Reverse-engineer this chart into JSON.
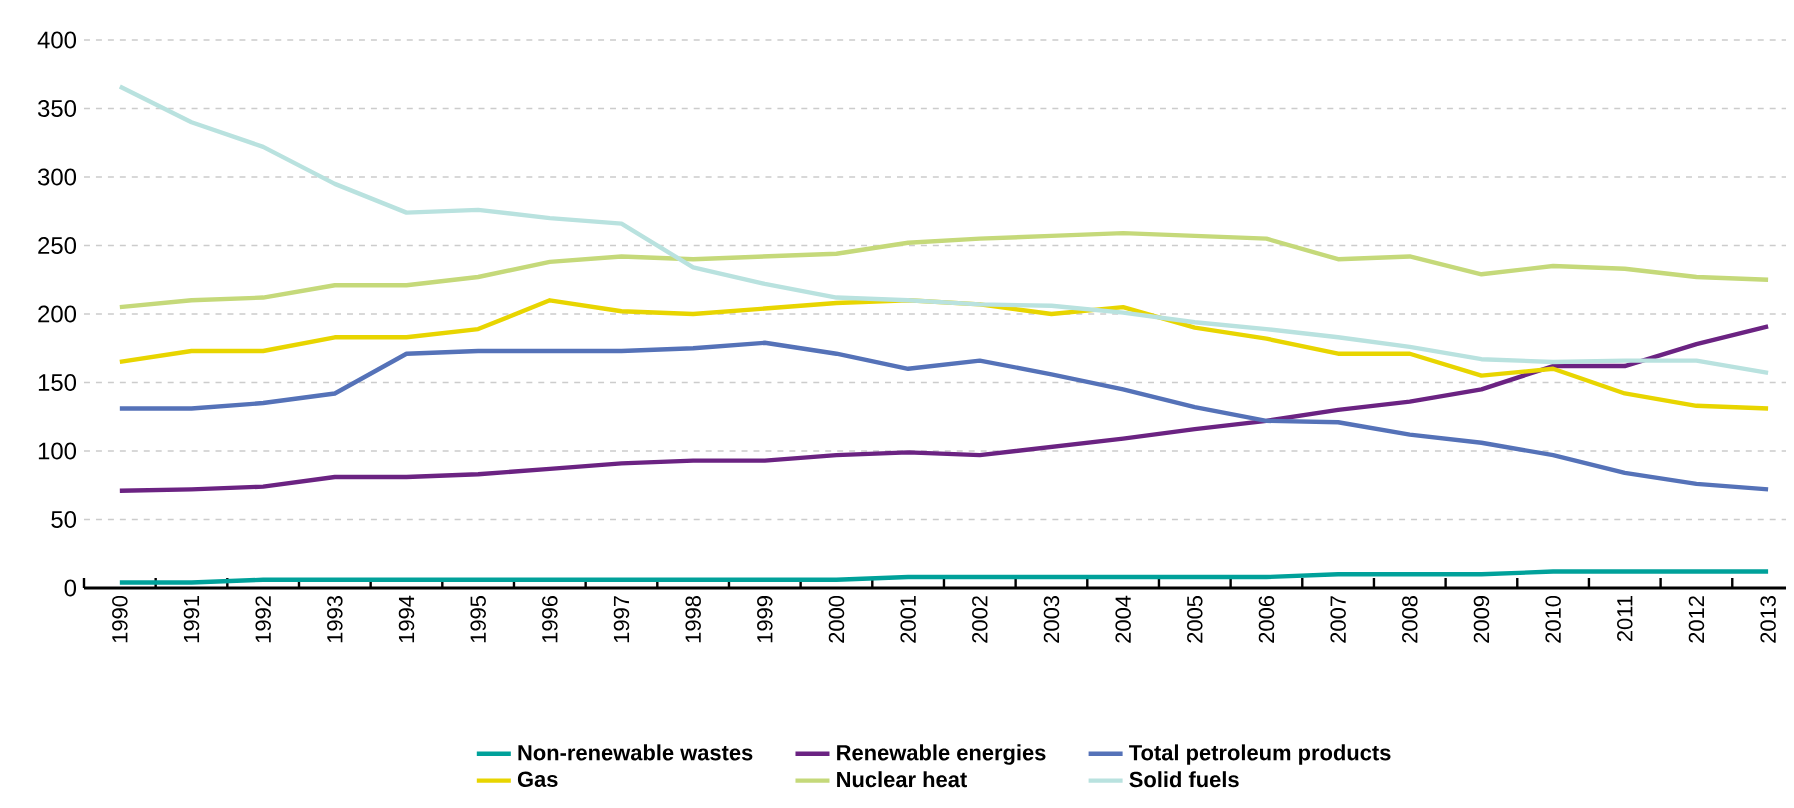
{
  "chart_data": {
    "type": "line",
    "categories": [
      "1990",
      "1991",
      "1992",
      "1993",
      "1994",
      "1995",
      "1996",
      "1997",
      "1998",
      "1999",
      "2000",
      "2001",
      "2002",
      "2003",
      "2004",
      "2005",
      "2006",
      "2007",
      "2008",
      "2009",
      "2010",
      "2011",
      "2012",
      "2013"
    ],
    "ylim": [
      0,
      400
    ],
    "yticks": [
      0,
      50,
      100,
      150,
      200,
      250,
      300,
      350,
      400
    ],
    "grid": "y",
    "legend": "bottom",
    "marker": "none",
    "line_style": "solid",
    "series": [
      {
        "name": "Non-renewable wastes",
        "color": "#00a19a",
        "values": [
          4,
          4,
          6,
          6,
          6,
          6,
          6,
          6,
          6,
          6,
          6,
          8,
          8,
          8,
          8,
          8,
          8,
          10,
          10,
          10,
          12,
          12,
          12,
          12
        ]
      },
      {
        "name": "Renewable energies",
        "color": "#6b2382",
        "values": [
          71,
          72,
          74,
          81,
          81,
          83,
          87,
          91,
          93,
          93,
          97,
          99,
          97,
          103,
          109,
          116,
          122,
          130,
          136,
          145,
          162,
          162,
          178,
          191
        ]
      },
      {
        "name": "Total petroleum products",
        "color": "#5572b8",
        "values": [
          131,
          131,
          135,
          142,
          171,
          173,
          173,
          173,
          175,
          179,
          171,
          160,
          166,
          156,
          145,
          132,
          122,
          121,
          112,
          106,
          97,
          84,
          76,
          72
        ]
      },
      {
        "name": "Gas",
        "color": "#e8d500",
        "values": [
          165,
          173,
          173,
          183,
          183,
          189,
          210,
          202,
          200,
          204,
          208,
          210,
          207,
          200,
          205,
          190,
          182,
          171,
          171,
          155,
          160,
          142,
          133,
          131
        ]
      },
      {
        "name": "Nuclear heat",
        "color": "#c5d97a",
        "values": [
          205,
          210,
          212,
          221,
          221,
          227,
          238,
          242,
          240,
          242,
          244,
          252,
          255,
          257,
          259,
          257,
          255,
          240,
          242,
          229,
          235,
          233,
          227,
          225
        ]
      },
      {
        "name": "Solid fuels",
        "color": "#b9e2df",
        "values": [
          366,
          340,
          322,
          295,
          274,
          276,
          270,
          266,
          234,
          222,
          212,
          210,
          207,
          206,
          201,
          194,
          189,
          183,
          176,
          167,
          165,
          166,
          166,
          157
        ]
      }
    ]
  }
}
